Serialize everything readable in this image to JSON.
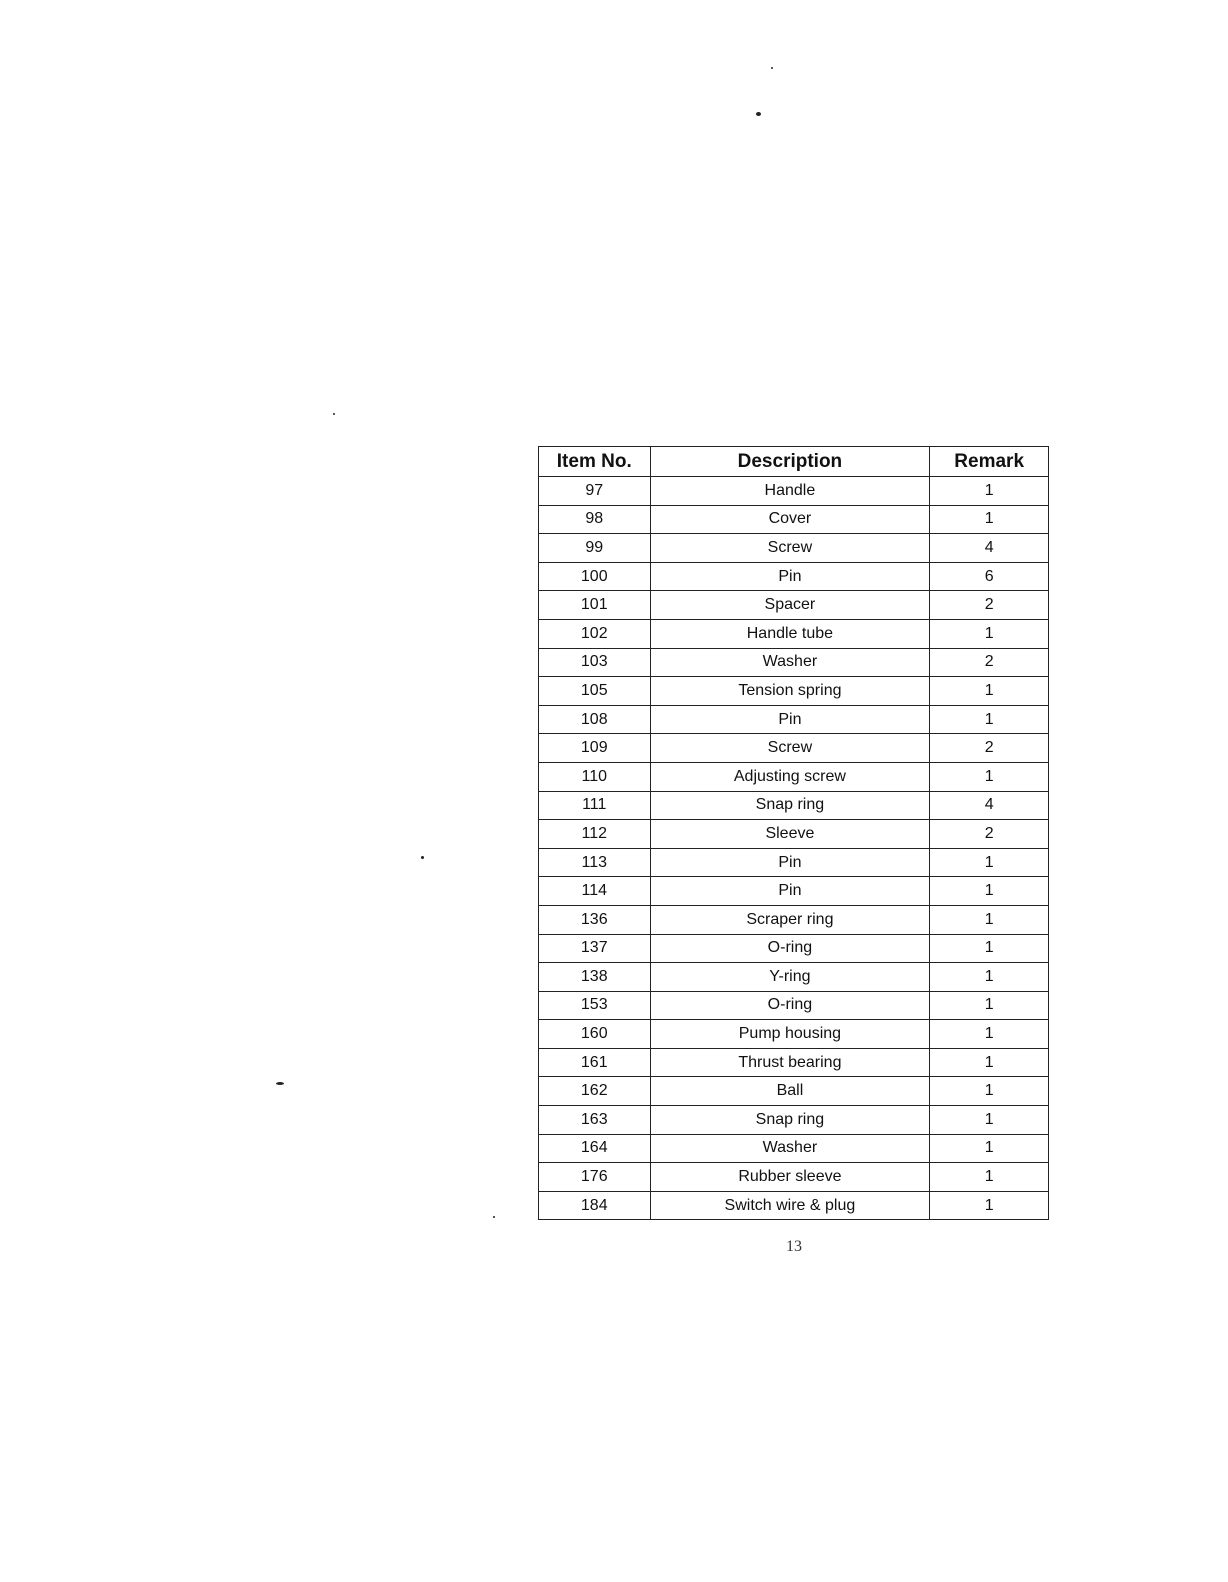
{
  "table": {
    "headers": [
      "Item No.",
      "Description",
      "Remark"
    ],
    "rows": [
      [
        "97",
        "Handle",
        "1"
      ],
      [
        "98",
        "Cover",
        "1"
      ],
      [
        "99",
        "Screw",
        "4"
      ],
      [
        "100",
        "Pin",
        "6"
      ],
      [
        "101",
        "Spacer",
        "2"
      ],
      [
        "102",
        "Handle tube",
        "1"
      ],
      [
        "103",
        "Washer",
        "2"
      ],
      [
        "105",
        "Tension spring",
        "1"
      ],
      [
        "108",
        "Pin",
        "1"
      ],
      [
        "109",
        "Screw",
        "2"
      ],
      [
        "110",
        "Adjusting screw",
        "1"
      ],
      [
        "111",
        "Snap ring",
        "4"
      ],
      [
        "112",
        "Sleeve",
        "2"
      ],
      [
        "113",
        "Pin",
        "1"
      ],
      [
        "114",
        "Pin",
        "1"
      ],
      [
        "136",
        "Scraper ring",
        "1"
      ],
      [
        "137",
        "O-ring",
        "1"
      ],
      [
        "138",
        "Y-ring",
        "1"
      ],
      [
        "153",
        "O-ring",
        "1"
      ],
      [
        "160",
        "Pump housing",
        "1"
      ],
      [
        "161",
        "Thrust bearing",
        "1"
      ],
      [
        "162",
        "Ball",
        "1"
      ],
      [
        "163",
        "Snap ring",
        "1"
      ],
      [
        "164",
        "Washer",
        "1"
      ],
      [
        "176",
        "Rubber sleeve",
        "1"
      ],
      [
        "184",
        "Switch wire & plug",
        "1"
      ]
    ]
  },
  "page_number": "13"
}
